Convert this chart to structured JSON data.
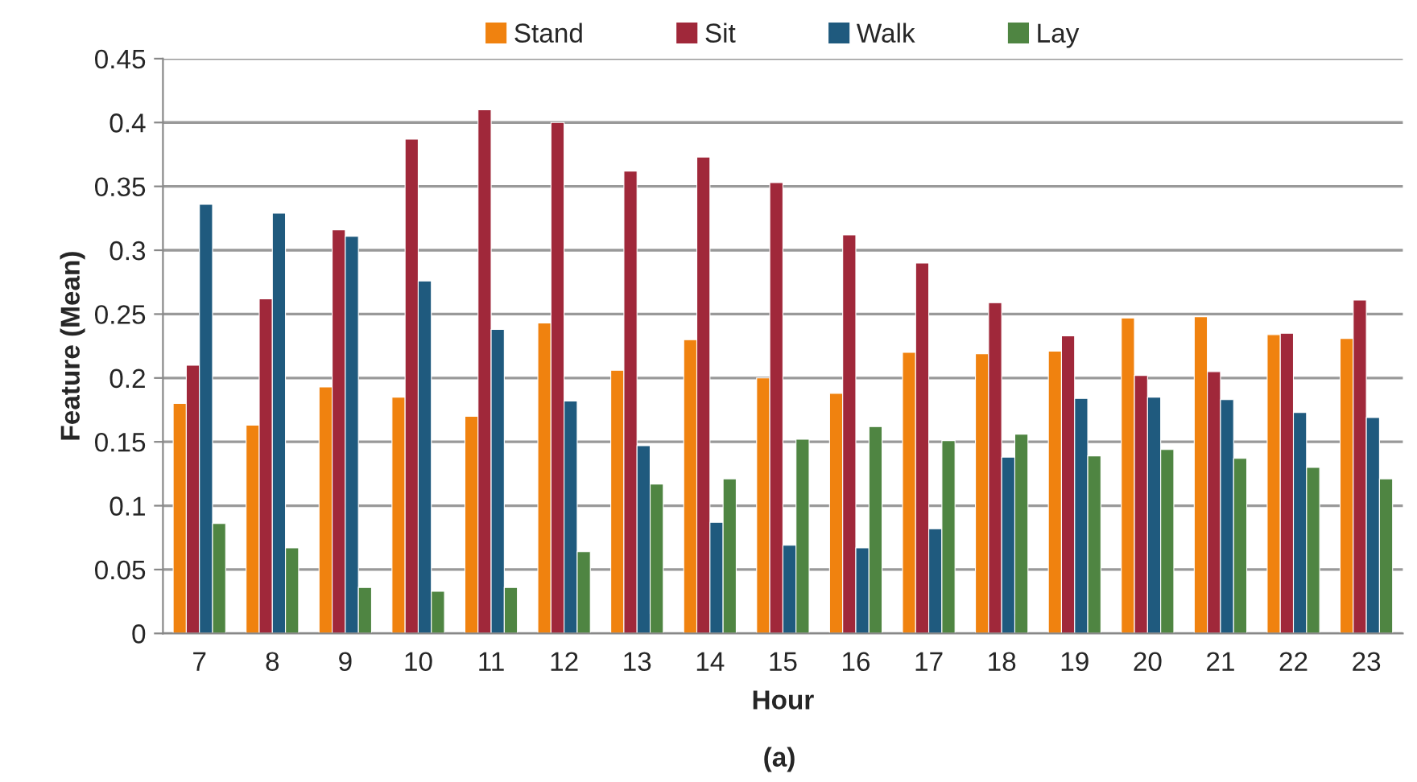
{
  "chart_data": {
    "type": "bar",
    "xlabel": "Hour",
    "ylabel": "Feature (Mean)",
    "annotations": [
      "(a)"
    ],
    "categories": [
      "7",
      "8",
      "9",
      "10",
      "11",
      "12",
      "13",
      "14",
      "15",
      "16",
      "17",
      "18",
      "19",
      "20",
      "21",
      "22",
      "23"
    ],
    "series": [
      {
        "name": "Stand",
        "color": "#f0820f",
        "values": [
          0.18,
          0.163,
          0.193,
          0.185,
          0.17,
          0.243,
          0.206,
          0.23,
          0.2,
          0.188,
          0.22,
          0.219,
          0.221,
          0.247,
          0.248,
          0.234,
          0.231
        ]
      },
      {
        "name": "Sit",
        "color": "#a0283a",
        "values": [
          0.21,
          0.262,
          0.316,
          0.387,
          0.41,
          0.4,
          0.362,
          0.373,
          0.353,
          0.312,
          0.29,
          0.259,
          0.233,
          0.202,
          0.205,
          0.235,
          0.261
        ]
      },
      {
        "name": "Walk",
        "color": "#1f5a7e",
        "values": [
          0.336,
          0.329,
          0.311,
          0.276,
          0.238,
          0.182,
          0.147,
          0.087,
          0.069,
          0.067,
          0.082,
          0.138,
          0.184,
          0.185,
          0.183,
          0.173,
          0.169
        ]
      },
      {
        "name": "Lay",
        "color": "#4f8542",
        "values": [
          0.086,
          0.067,
          0.036,
          0.033,
          0.036,
          0.064,
          0.117,
          0.121,
          0.152,
          0.162,
          0.151,
          0.156,
          0.139,
          0.144,
          0.137,
          0.13,
          0.121
        ]
      }
    ],
    "ylim": [
      0,
      0.45
    ],
    "yticks": [
      0,
      0.05,
      0.1,
      0.15,
      0.2,
      0.25,
      0.3,
      0.35,
      0.4,
      0.45
    ],
    "grid": "y",
    "legend": "top"
  }
}
